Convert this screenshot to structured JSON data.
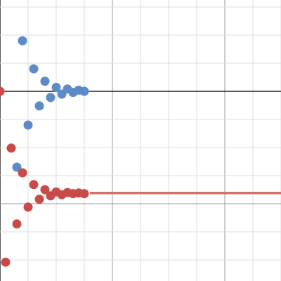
{
  "chart_data": {
    "type": "scatter",
    "xlim": [
      0,
      5
    ],
    "ylim": [
      -3.375,
      1.625
    ],
    "xticks": [
      0,
      0.5,
      1,
      1.5,
      2,
      2.5,
      3,
      3.5,
      4,
      4.5,
      5
    ],
    "yticks": [
      1.5,
      1,
      0.5,
      0,
      -0.5,
      -1,
      -1.5,
      -2,
      -2.5,
      -3
    ],
    "grid": true,
    "series": [
      {
        "type": "scatter",
        "color": "#5b8bc9",
        "x": [
          0.3,
          0.4,
          0.5,
          0.6,
          0.7,
          0.8,
          0.9,
          1.0,
          1.1,
          1.2,
          1.3,
          1.4,
          1.5
        ],
        "values": [
          -1.35,
          0.9,
          -0.6,
          0.4,
          -0.26,
          0.18,
          -0.11,
          0.07,
          -0.05,
          0.04,
          -0.02,
          0.02,
          0
        ]
      },
      {
        "type": "scatter",
        "color": "#c94a48",
        "x": [
          0,
          0.1,
          0.2,
          0.3,
          0.4,
          0.5,
          0.6,
          0.7,
          0.8,
          0.9,
          1.0,
          1.1,
          1.2,
          1.3,
          1.4,
          1.5
        ],
        "values": [
          0,
          -3.04,
          -1.01,
          -2.36,
          -1.45,
          -2.06,
          -1.66,
          -1.92,
          -1.75,
          -1.86,
          -1.79,
          -1.84,
          -1.8,
          -1.82,
          -1.81,
          -1.82
        ]
      },
      {
        "type": "line",
        "color": "#d46f6d",
        "x": [
          1.6,
          5
        ],
        "values": [
          -1.81,
          -1.81
        ]
      }
    ]
  }
}
